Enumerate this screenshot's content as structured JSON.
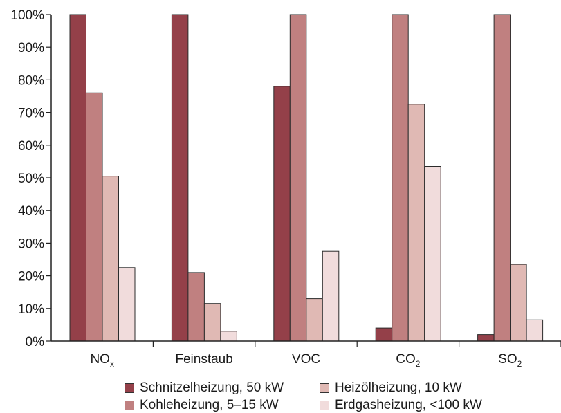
{
  "chart_data": {
    "type": "bar",
    "categories": [
      {
        "main": "NO",
        "sub": "x"
      },
      {
        "main": "Feinstaub",
        "sub": ""
      },
      {
        "main": "VOC",
        "sub": ""
      },
      {
        "main": "CO",
        "sub": "2"
      },
      {
        "main": "SO",
        "sub": "2"
      }
    ],
    "series": [
      {
        "name": "Schnitzelheizung, 50 kW",
        "color": "#944049",
        "values": [
          100,
          100,
          78,
          4,
          2
        ]
      },
      {
        "name": "Kohleheizung, 5–15 kW",
        "color": "#c08080",
        "values": [
          76,
          21,
          100,
          100,
          100
        ]
      },
      {
        "name": "Heizölheizung, 10 kW",
        "color": "#e0b9b4",
        "values": [
          50.5,
          11.5,
          13,
          72.5,
          23.5
        ]
      },
      {
        "name": "Erdgasheizung, <100 kW",
        "color": "#f1dcdc",
        "values": [
          22.5,
          3,
          27.5,
          53.5,
          6.5
        ]
      }
    ],
    "ylim": [
      0,
      100
    ],
    "yticks": [
      "0%",
      "10%",
      "20%",
      "30%",
      "40%",
      "50%",
      "60%",
      "70%",
      "80%",
      "90%",
      "100%"
    ],
    "title": "",
    "xlabel": "",
    "ylabel": "",
    "grid": false,
    "legend_position": "bottom"
  }
}
